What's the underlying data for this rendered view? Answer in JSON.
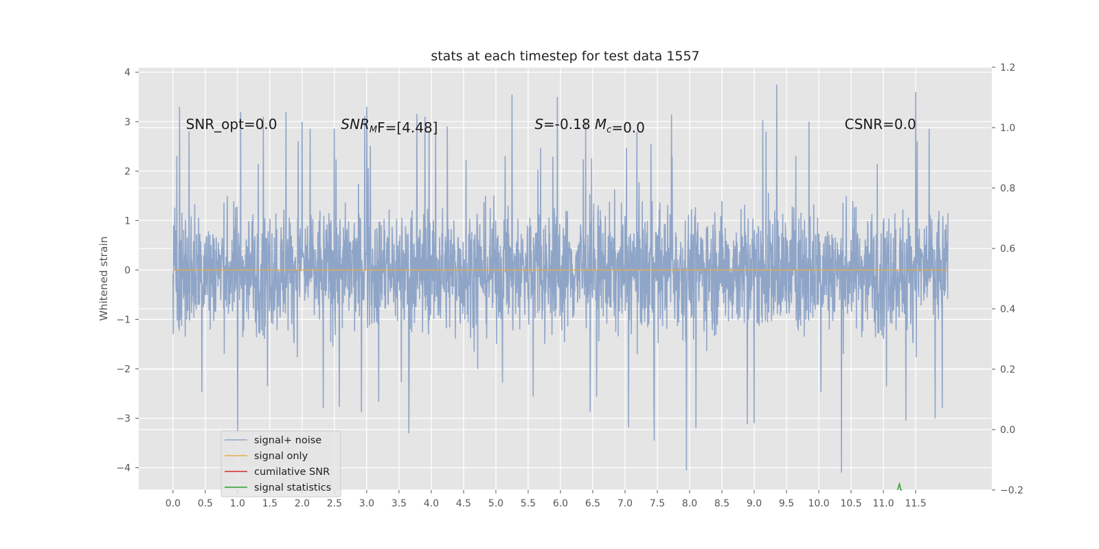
{
  "chart_data": {
    "type": "line",
    "title": "stats at each timestep for test data 1557",
    "xlabel": "",
    "ylabel": "Whitened strain",
    "y2label": "",
    "xlim": [
      -0.53,
      12.68
    ],
    "ylim": [
      -4.45,
      4.1
    ],
    "y2lim": [
      -0.2,
      1.2
    ],
    "x_ticks": [
      "0.0",
      "0.5",
      "1.0",
      "1.5",
      "2.0",
      "2.5",
      "3.0",
      "3.5",
      "4.0",
      "4.5",
      "5.0",
      "5.5",
      "6.0",
      "6.5",
      "7.0",
      "7.5",
      "8.0",
      "8.5",
      "9.0",
      "9.5",
      "10.0",
      "10.5",
      "11.0",
      "11.5"
    ],
    "y_ticks": [
      "4",
      "3",
      "2",
      "1",
      "0",
      "−1",
      "−2",
      "−3",
      "−4"
    ],
    "y2_ticks": [
      "1.2",
      "1.0",
      "0.8",
      "0.6",
      "0.4",
      "0.2",
      "0.0",
      "−0.2"
    ],
    "grid": true,
    "legend_position": "lower-left",
    "series": [
      {
        "name": "signal+ noise",
        "color": "#8fa5c8",
        "axis": "left",
        "x_range": [
          0.0,
          12.0
        ],
        "typical_band": [
          -1.6,
          1.6
        ],
        "spikes": [
          [
            0.1,
            3.3
          ],
          [
            0.25,
            2.8
          ],
          [
            1.0,
            -3.3
          ],
          [
            1.05,
            3.2
          ],
          [
            1.4,
            3.1
          ],
          [
            1.75,
            3.2
          ],
          [
            2.0,
            3.0
          ],
          [
            3.0,
            3.3
          ],
          [
            3.65,
            -3.3
          ],
          [
            3.9,
            3.1
          ],
          [
            4.25,
            2.9
          ],
          [
            5.25,
            3.55
          ],
          [
            5.95,
            3.5
          ],
          [
            7.45,
            -3.45
          ],
          [
            7.95,
            -4.05
          ],
          [
            8.1,
            -3.2
          ],
          [
            9.0,
            -3.1
          ],
          [
            9.35,
            3.75
          ],
          [
            9.85,
            3.0
          ],
          [
            10.35,
            -4.1
          ],
          [
            11.5,
            3.6
          ],
          [
            11.35,
            -3.05
          ],
          [
            11.8,
            -3.0
          ]
        ]
      },
      {
        "name": "signal only",
        "color": "#e8ad49",
        "axis": "left",
        "x": [
          0.0,
          12.0
        ],
        "y": [
          0.0,
          0.0
        ]
      },
      {
        "name": "cumilative SNR",
        "color": "#d62728",
        "axis": "right",
        "x": [],
        "y": []
      },
      {
        "name": "signal statistics",
        "color": "#2ca02c",
        "axis": "right",
        "x": [
          11.22,
          11.25,
          11.27,
          11.29
        ],
        "y": [
          -0.2,
          -0.18,
          -0.2,
          -0.2
        ]
      }
    ],
    "annotations": [
      {
        "text": "SNR_opt=0.0",
        "x": 0.2,
        "y": 2.95
      },
      {
        "parts": [
          {
            "t": "SNR",
            "i": true
          },
          {
            "t": "M",
            "i": true,
            "sub": true
          },
          {
            "t": "F=[4.48]",
            "i": false
          }
        ],
        "x": 2.6,
        "y": 2.95
      },
      {
        "parts": [
          {
            "t": "S",
            "i": true
          },
          {
            "t": "=-0.18  ",
            "i": false
          },
          {
            "t": "M",
            "i": true
          },
          {
            "t": "c",
            "i": true,
            "sub": true
          },
          {
            "t": "=0.0",
            "i": false
          }
        ],
        "x": 5.6,
        "y": 2.95
      },
      {
        "text": "CSNR=0.0",
        "x": 10.4,
        "y": 2.95
      }
    ]
  }
}
